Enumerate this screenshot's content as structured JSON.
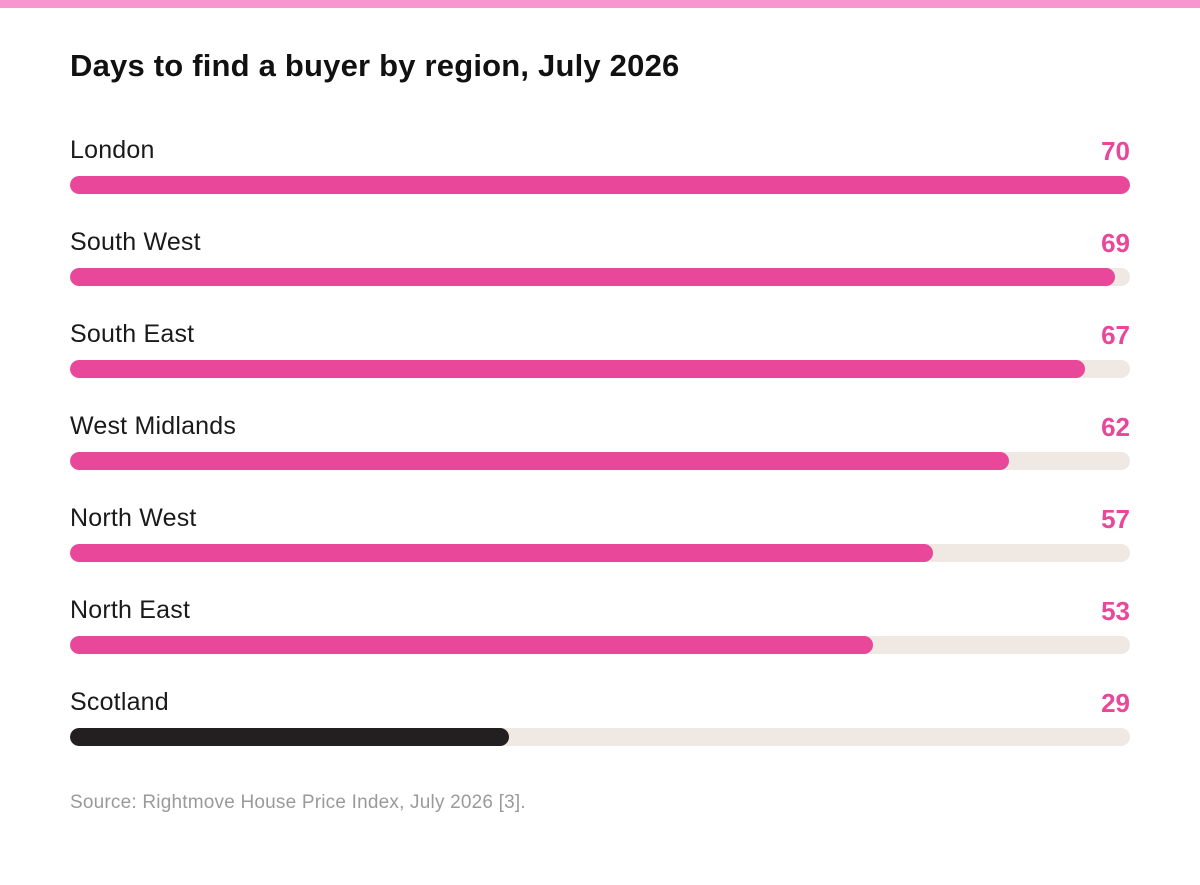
{
  "chart_data": {
    "type": "bar",
    "orientation": "horizontal",
    "title": "Days to find a buyer by region, July 2026",
    "categories": [
      "London",
      "South West",
      "South East",
      "West Midlands",
      "North West",
      "North East",
      "Scotland"
    ],
    "values": [
      70,
      69,
      67,
      62,
      57,
      53,
      29
    ],
    "xlim": [
      0,
      70
    ],
    "highlight_category": "Scotland",
    "colors": {
      "bar": "#e8479a",
      "highlight": "#231f20",
      "track": "#f0e8e2",
      "value_text": "#e8489a",
      "top_bar": "#f896cf"
    },
    "source": "Source: Rightmove House Price Index, July 2026 [3]."
  }
}
